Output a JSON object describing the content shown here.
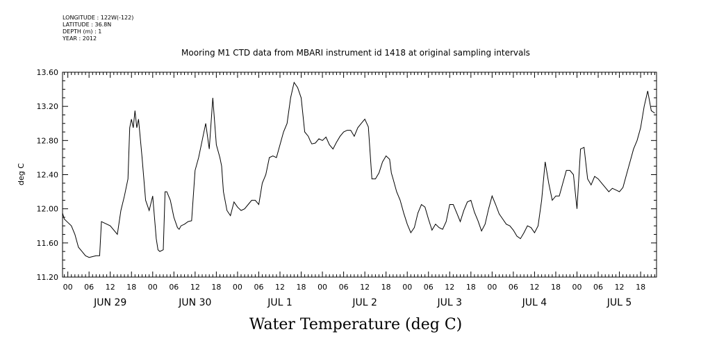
{
  "header": {
    "longitude": "LONGITUDE : 122W(-122)",
    "latitude": "LATITUDE : 36.8N",
    "depth": "DEPTH (m) : 1",
    "year": "YEAR : 2012"
  },
  "chart_data": {
    "type": "line",
    "title": "Mooring M1 CTD data from MBARI instrument id 1418 at original sampling intervals",
    "xlabel": "Water Temperature (deg C)",
    "ylabel": "deg C",
    "ylim": [
      11.2,
      13.6
    ],
    "yticks": [
      "11.20",
      "11.60",
      "12.00",
      "12.40",
      "12.80",
      "13.20",
      "13.60"
    ],
    "xlim_hours": [
      -1.5,
      166.5
    ],
    "xtick_labels": [
      "00",
      "06",
      "12",
      "18",
      "00",
      "06",
      "12",
      "18",
      "00",
      "06",
      "12",
      "18",
      "00",
      "06",
      "12",
      "18",
      "00",
      "06",
      "12",
      "18",
      "00",
      "06",
      "12",
      "18",
      "00",
      "06",
      "12",
      "18"
    ],
    "date_labels": [
      "JUN 29",
      "JUN 30",
      "JUL  1",
      "JUL  2",
      "JUL  3",
      "JUL  4",
      "JUL  5"
    ],
    "grid": false,
    "series": [
      {
        "x_hours_from_jun29_00": [
          -1.5,
          -1,
          0,
          1,
          2,
          3,
          4,
          5,
          6,
          7,
          8,
          9,
          9.5,
          10,
          12,
          14,
          15,
          16,
          17,
          17.5,
          18,
          18.5,
          19,
          19.5,
          20,
          21,
          22,
          23,
          24,
          25,
          25.5,
          26,
          27,
          27.5,
          28,
          29,
          30,
          31,
          31.5,
          32,
          33,
          34,
          35,
          36,
          37,
          38,
          39,
          40,
          41,
          42,
          43,
          43.5,
          44,
          45,
          46,
          47,
          48,
          49,
          50,
          51,
          52,
          53,
          54,
          55,
          56,
          57,
          58,
          59,
          60,
          61,
          62,
          63,
          64,
          65,
          66,
          67,
          68,
          68.5,
          69,
          70,
          71,
          72,
          73,
          74,
          75,
          76,
          77,
          78,
          79,
          80,
          81,
          82,
          83,
          84,
          85,
          86,
          87,
          88,
          89,
          90,
          91,
          91.5,
          92,
          93,
          94,
          95,
          96,
          97,
          98,
          99,
          100,
          101,
          102,
          103,
          104,
          105,
          106,
          107,
          108,
          109,
          110,
          111,
          112,
          113,
          114,
          115,
          116,
          117,
          118,
          119,
          120,
          121,
          122,
          123,
          124,
          125,
          126,
          127,
          128,
          129,
          130,
          131,
          132,
          133,
          134,
          135,
          136,
          137,
          138,
          139,
          140,
          141,
          142,
          143,
          144,
          145,
          146,
          147,
          148,
          149,
          150,
          151,
          152,
          153,
          154,
          155,
          156,
          157,
          158,
          159,
          160,
          161,
          162,
          163,
          164,
          165,
          166,
          166.5
        ],
        "values": [
          11.95,
          11.88,
          11.84,
          11.8,
          11.7,
          11.55,
          11.5,
          11.45,
          11.43,
          11.44,
          11.45,
          11.45,
          11.85,
          11.84,
          11.8,
          11.7,
          11.98,
          12.15,
          12.35,
          12.95,
          13.05,
          12.95,
          13.15,
          12.95,
          13.05,
          12.6,
          12.1,
          11.98,
          12.15,
          11.65,
          11.52,
          11.5,
          11.52,
          12.2,
          12.2,
          12.1,
          11.9,
          11.78,
          11.76,
          11.8,
          11.82,
          11.85,
          11.86,
          12.45,
          12.6,
          12.8,
          13.0,
          12.7,
          13.3,
          12.75,
          12.6,
          12.5,
          12.2,
          11.98,
          11.92,
          12.08,
          12.02,
          11.98,
          12.0,
          12.05,
          12.1,
          12.1,
          12.05,
          12.3,
          12.4,
          12.6,
          12.62,
          12.6,
          12.75,
          12.9,
          13.0,
          13.3,
          13.48,
          13.42,
          13.3,
          12.9,
          12.85,
          12.8,
          12.76,
          12.77,
          12.82,
          12.8,
          12.84,
          12.75,
          12.7,
          12.78,
          12.85,
          12.9,
          12.92,
          12.92,
          12.85,
          12.95,
          13.0,
          13.05,
          12.96,
          12.35,
          12.35,
          12.42,
          12.55,
          12.62,
          12.58,
          12.42,
          12.35,
          12.2,
          12.1,
          11.95,
          11.82,
          11.72,
          11.78,
          11.95,
          12.05,
          12.02,
          11.88,
          11.75,
          11.82,
          11.78,
          11.76,
          11.85,
          12.05,
          12.05,
          11.95,
          11.85,
          11.98,
          12.08,
          12.1,
          11.96,
          11.86,
          11.74,
          11.82,
          12.0,
          12.15,
          12.05,
          11.94,
          11.88,
          11.82,
          11.8,
          11.75,
          11.68,
          11.65,
          11.72,
          11.8,
          11.78,
          11.72,
          11.8,
          12.1,
          12.55,
          12.3,
          12.1,
          12.15,
          12.15,
          12.3,
          12.45,
          12.45,
          12.4,
          12.0,
          12.7,
          12.72,
          12.35,
          12.28,
          12.38,
          12.35,
          12.3,
          12.25,
          12.2,
          12.24,
          12.22,
          12.2,
          12.25,
          12.4,
          12.55,
          12.7,
          12.8,
          12.95,
          13.2,
          13.38,
          13.15,
          13.12
        ]
      }
    ]
  }
}
